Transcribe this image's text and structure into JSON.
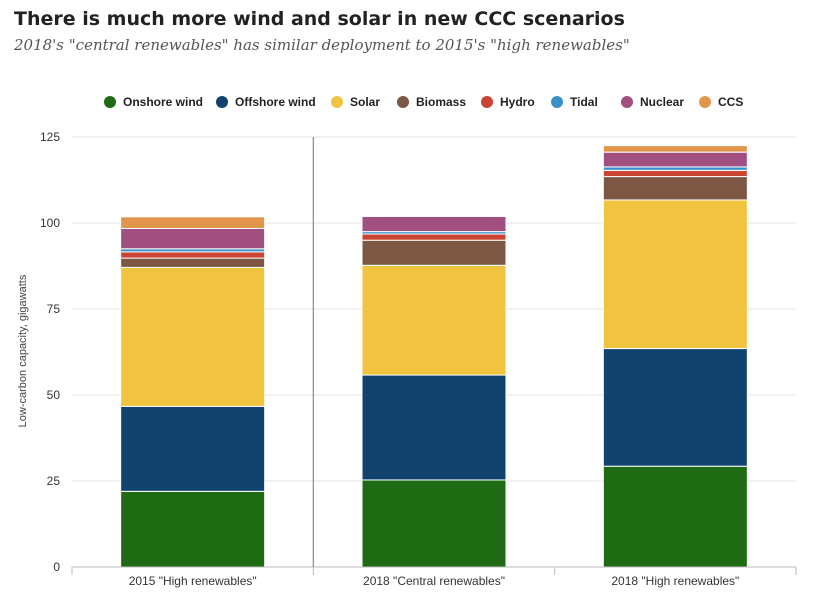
{
  "title": "There is much more wind and solar in new CCC scenarios",
  "subtitle": "2018's \"central renewables\" has similar deployment to 2015's \"high renewables\"",
  "chart_data": {
    "type": "bar",
    "stacked": true,
    "categories": [
      "2015 \"High renewables\"",
      "2018 \"Central renewables\"",
      "2018 \"High renewables\""
    ],
    "ylabel": "Low-carbon capacity, gigawatts",
    "ylim": [
      0,
      125
    ],
    "yticks": [
      0,
      25,
      50,
      75,
      100,
      125
    ],
    "grid": true,
    "legend_position": "top",
    "series": [
      {
        "name": "Onshore wind",
        "color": "#1e6b14",
        "values": [
          22,
          25.3,
          29.3
        ]
      },
      {
        "name": "Offshore wind",
        "color": "#10436e",
        "values": [
          24.7,
          30.5,
          34.2
        ]
      },
      {
        "name": "Solar",
        "color": "#f0c43e",
        "values": [
          40.4,
          31.9,
          43.2
        ]
      },
      {
        "name": "Biomass",
        "color": "#7d5744",
        "values": [
          2.7,
          7.3,
          6.8
        ]
      },
      {
        "name": "Hydro",
        "color": "#c94432",
        "values": [
          1.8,
          1.8,
          1.8
        ]
      },
      {
        "name": "Tidal",
        "color": "#3a91c9",
        "values": [
          0.9,
          0.7,
          1.0
        ]
      },
      {
        "name": "Nuclear",
        "color": "#a04f80",
        "values": [
          5.9,
          4.4,
          4.3
        ]
      },
      {
        "name": "CCS",
        "color": "#e1964b",
        "values": [
          3.4,
          0,
          1.9
        ]
      }
    ]
  }
}
